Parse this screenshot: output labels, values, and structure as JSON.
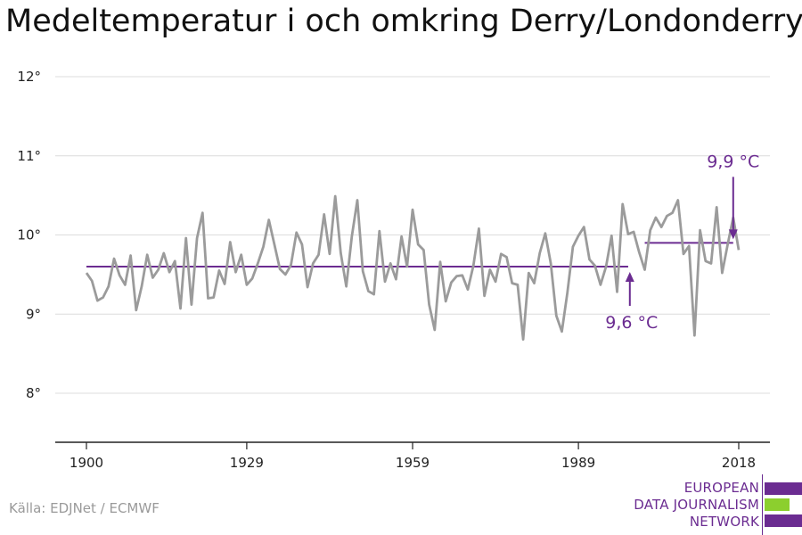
{
  "chart_data": {
    "type": "line",
    "title": "Medeltemperatur i och omkring Derry/Londonderry",
    "xlabel": "",
    "ylabel": "",
    "xlim": [
      1900,
      2018
    ],
    "ylim": [
      8,
      12
    ],
    "yticks": [
      8,
      9,
      10,
      11,
      12
    ],
    "ytick_labels": [
      "8°",
      "9°",
      "10°",
      "11°",
      "12°"
    ],
    "xticks": [
      1900,
      1929,
      1959,
      1989,
      2018
    ],
    "xtick_labels": [
      "1900",
      "1929",
      "1959",
      "1989",
      "2018"
    ],
    "grid": true,
    "series": [
      {
        "color": "#9b9b9b",
        "x": [
          1900,
          1901,
          1902,
          1903,
          1904,
          1905,
          1906,
          1907,
          1908,
          1909,
          1910,
          1911,
          1912,
          1913,
          1914,
          1915,
          1916,
          1917,
          1918,
          1919,
          1920,
          1921,
          1922,
          1923,
          1924,
          1925,
          1926,
          1927,
          1928,
          1929,
          1930,
          1931,
          1932,
          1933,
          1934,
          1935,
          1936,
          1937,
          1938,
          1939,
          1940,
          1941,
          1942,
          1943,
          1944,
          1945,
          1946,
          1947,
          1948,
          1949,
          1950,
          1951,
          1952,
          1953,
          1954,
          1955,
          1956,
          1957,
          1958,
          1959,
          1960,
          1961,
          1962,
          1963,
          1964,
          1965,
          1966,
          1967,
          1968,
          1969,
          1970,
          1971,
          1972,
          1973,
          1974,
          1975,
          1976,
          1977,
          1978,
          1979,
          1980,
          1981,
          1982,
          1983,
          1984,
          1985,
          1986,
          1987,
          1988,
          1989,
          1990,
          1991,
          1992,
          1993,
          1994,
          1995,
          1996,
          1997,
          1998,
          1999,
          2000,
          2001,
          2002,
          2003,
          2004,
          2005,
          2006,
          2007,
          2008,
          2009,
          2010,
          2011,
          2012,
          2013,
          2014,
          2015,
          2016,
          2017,
          2018
        ],
        "y": [
          9.52,
          9.42,
          9.17,
          9.21,
          9.35,
          9.7,
          9.49,
          9.37,
          9.74,
          9.05,
          9.35,
          9.75,
          9.46,
          9.56,
          9.77,
          9.53,
          9.67,
          9.07,
          9.96,
          9.12,
          9.96,
          10.28,
          9.2,
          9.21,
          9.55,
          9.38,
          9.91,
          9.53,
          9.75,
          9.37,
          9.45,
          9.64,
          9.85,
          10.19,
          9.88,
          9.57,
          9.5,
          9.62,
          10.03,
          9.88,
          9.34,
          9.64,
          9.75,
          10.26,
          9.76,
          10.49,
          9.77,
          9.35,
          9.98,
          10.44,
          9.54,
          9.29,
          9.25,
          10.05,
          9.41,
          9.64,
          9.44,
          9.98,
          9.6,
          10.32,
          9.88,
          9.81,
          9.12,
          8.8,
          9.66,
          9.16,
          9.4,
          9.48,
          9.49,
          9.31,
          9.61,
          10.08,
          9.23,
          9.56,
          9.41,
          9.76,
          9.72,
          9.39,
          9.37,
          8.68,
          9.52,
          9.39,
          9.77,
          10.02,
          9.64,
          8.98,
          8.78,
          9.27,
          9.85,
          9.99,
          10.1,
          9.69,
          9.61,
          9.37,
          9.6,
          9.99,
          9.28,
          10.39,
          10.01,
          10.04,
          9.78,
          9.56,
          10.06,
          10.22,
          10.1,
          10.24,
          10.28,
          10.44,
          9.76,
          9.86,
          8.73,
          10.06,
          9.67,
          9.64,
          10.35,
          9.52,
          9.88,
          10.22,
          9.81
        ]
      }
    ],
    "reference_lines": [
      {
        "x_start": 1900,
        "x_end": 1998,
        "value": 9.6,
        "color": "#6b2c91",
        "label": "9,6 °C"
      },
      {
        "x_start": 2001,
        "x_end": 2017,
        "value": 9.9,
        "color": "#6b2c91",
        "label": "9,9 °C"
      }
    ]
  },
  "source": "Källa: EDJNet / ECMWF",
  "logo": {
    "lines": [
      "EUROPEAN",
      "DATA JOURNALISM",
      "NETWORK"
    ],
    "colors": {
      "purple": "#6b2c91",
      "green": "#8ccf2e"
    }
  }
}
